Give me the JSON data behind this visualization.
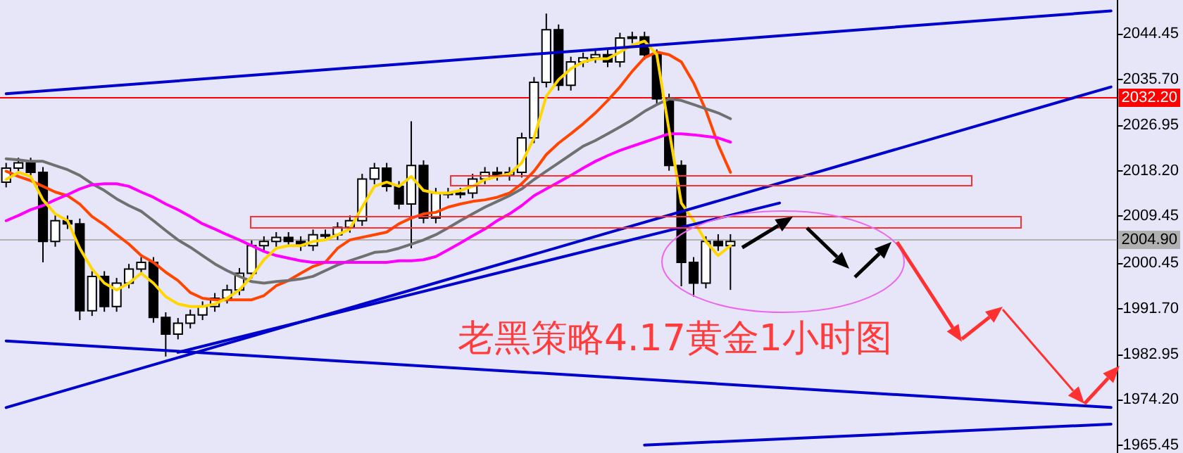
{
  "chart_data": {
    "type": "candlestick",
    "color": "#000000",
    "annotations": [
      "老黑策略4.17黄金1小时图"
    ],
    "categories": [
      null,
      null,
      null,
      null,
      null,
      null,
      null,
      null,
      null,
      null,
      null,
      null,
      null,
      null,
      null,
      null,
      null,
      null,
      null,
      null,
      null,
      null,
      null,
      null,
      null,
      null,
      null,
      null,
      null,
      null,
      null,
      null,
      null,
      null,
      null,
      null,
      null,
      null,
      null,
      null,
      null,
      null,
      null,
      null,
      null,
      null,
      null,
      null,
      null,
      null,
      null,
      null,
      null,
      null,
      null,
      null,
      null,
      null,
      null,
      null,
      null,
      null,
      null,
      null,
      null,
      null,
      null,
      null,
      null,
      null,
      null,
      null,
      null,
      null,
      null,
      null,
      null,
      null,
      null,
      null,
      null,
      null,
      null,
      null,
      null,
      null,
      null,
      null,
      null,
      null,
      null
    ],
    "ohlc": [
      [
        2016.0,
        2019.7,
        2015.0,
        2018.7
      ],
      [
        2018.7,
        2020.7,
        2017.7,
        2019.7
      ],
      [
        2019.7,
        2020.7,
        2016.9,
        2017.9
      ],
      [
        2017.9,
        2018.9,
        2000.6,
        2004.6
      ],
      [
        2004.6,
        2009.6,
        2003.6,
        2008.6
      ],
      [
        2008.6,
        2009.6,
        2007.0,
        2008.0
      ],
      [
        2008.0,
        2009.0,
        1989.5,
        1991.3
      ],
      [
        1991.3,
        1998.9,
        1990.3,
        1997.9
      ],
      [
        1997.9,
        1998.9,
        1991.1,
        1992.1
      ],
      [
        1992.1,
        1997.6,
        1991.1,
        1996.6
      ],
      [
        1996.6,
        2000.3,
        1995.6,
        1999.3
      ],
      [
        1999.3,
        2001.6,
        1998.3,
        2000.6
      ],
      [
        2000.6,
        2001.6,
        1989.0,
        1990.0
      ],
      [
        1990.0,
        1991.0,
        1982.5,
        1986.8
      ],
      [
        1986.8,
        1989.9,
        1985.8,
        1988.9
      ],
      [
        1988.9,
        1991.5,
        1987.9,
        1990.5
      ],
      [
        1990.5,
        1993.1,
        1989.5,
        1992.1
      ],
      [
        1992.1,
        1994.7,
        1991.1,
        1993.7
      ],
      [
        1993.7,
        1996.3,
        1992.7,
        1995.3
      ],
      [
        1995.3,
        1999.5,
        1994.3,
        1998.5
      ],
      [
        1998.5,
        2004.8,
        1997.5,
        2003.8
      ],
      [
        2003.8,
        2005.6,
        2002.8,
        2004.6
      ],
      [
        2004.6,
        2006.4,
        2003.6,
        2005.4
      ],
      [
        2005.4,
        2006.4,
        2003.6,
        2004.6
      ],
      [
        2004.6,
        2005.6,
        2002.8,
        2003.8
      ],
      [
        2003.8,
        2006.9,
        2002.8,
        2005.9
      ],
      [
        2005.9,
        2006.9,
        2004.9,
        2005.9
      ],
      [
        2005.9,
        2008.3,
        2004.9,
        2007.3
      ],
      [
        2007.3,
        2009.6,
        2006.3,
        2008.6
      ],
      [
        2008.6,
        2017.6,
        2007.6,
        2016.6
      ],
      [
        2016.6,
        2019.7,
        2015.6,
        2018.7
      ],
      [
        2018.7,
        2019.7,
        2014.2,
        2015.2
      ],
      [
        2015.2,
        2016.2,
        2010.8,
        2011.8
      ],
      [
        2011.8,
        2027.7,
        2003.3,
        2019.2
      ],
      [
        2019.2,
        2020.2,
        2008.1,
        2009.1
      ],
      [
        2009.1,
        2014.9,
        2008.1,
        2013.9
      ],
      [
        2013.9,
        2014.9,
        2012.9,
        2013.9
      ],
      [
        2013.9,
        2014.9,
        2012.9,
        2013.9
      ],
      [
        2013.9,
        2017.6,
        2012.9,
        2016.6
      ],
      [
        2016.6,
        2018.9,
        2015.6,
        2017.9
      ],
      [
        2017.9,
        2018.9,
        2016.3,
        2017.3
      ],
      [
        2017.3,
        2018.9,
        2016.3,
        2017.9
      ],
      [
        2017.9,
        2025.5,
        2016.9,
        2024.5
      ],
      [
        2024.5,
        2036.2,
        2023.5,
        2035.2
      ],
      [
        2035.2,
        2048.4,
        2034.2,
        2045.3
      ],
      [
        2045.3,
        2046.3,
        2033.6,
        2034.6
      ],
      [
        2034.6,
        2040.1,
        2033.6,
        2039.1
      ],
      [
        2039.1,
        2040.9,
        2038.1,
        2039.9
      ],
      [
        2039.9,
        2041.5,
        2038.9,
        2040.5
      ],
      [
        2040.5,
        2041.5,
        2038.1,
        2039.1
      ],
      [
        2039.1,
        2044.7,
        2038.1,
        2043.7
      ],
      [
        2043.7,
        2044.9,
        2042.7,
        2043.9
      ],
      [
        2043.9,
        2044.9,
        2039.5,
        2040.5
      ],
      [
        2040.5,
        2041.5,
        2031.0,
        2032.0
      ],
      [
        2032.0,
        2033.0,
        2018.2,
        2019.2
      ],
      [
        2019.2,
        2020.2,
        1996.0,
        2000.6
      ],
      [
        2000.6,
        2001.6,
        1994.0,
        1996.6
      ],
      [
        1996.6,
        2005.6,
        1995.6,
        2004.6
      ],
      [
        2004.6,
        2006.0,
        2002.8,
        2003.8
      ],
      [
        2003.8,
        2006.0,
        1995.3,
        2004.6
      ],
      null,
      null,
      null,
      null,
      null,
      null,
      null,
      null,
      null,
      null,
      null,
      null,
      null,
      null,
      null,
      null,
      null,
      null,
      null,
      null,
      null,
      null,
      null,
      null,
      null,
      null,
      null,
      null,
      null,
      null,
      null
    ],
    "series": [
      {
        "type": "line",
        "color": "#ff4500",
        "values": [
          2018.1,
          2017.1,
          2016.3,
          2015.2,
          2014.1,
          2013.4,
          2011.8,
          2009.4,
          2007.8,
          2005.9,
          2004.1,
          2001.9,
          2000.6,
          1998.7,
          1997.1,
          1994.8,
          1993.7,
          1993.4,
          1993.4,
          1993.4,
          1993.4,
          1994.2,
          1996.1,
          1997.1,
          1998.5,
          1999.8,
          2000.6,
          2003.3,
          2004.9,
          2005.4,
          2005.9,
          2006.4,
          2008.0,
          2009.1,
          2009.9,
          2010.2,
          2011.2,
          2011.8,
          2012.3,
          2012.6,
          2013.1,
          2013.9,
          2015.7,
          2018.1,
          2021.3,
          2023.5,
          2025.3,
          2027.2,
          2029.3,
          2031.7,
          2034.3,
          2037.3,
          2039.9,
          2041.0,
          2040.5,
          2039.1,
          2035.1,
          2029.8,
          2023.2,
          2017.9,
          null,
          null,
          null,
          null,
          null,
          null,
          null,
          null,
          null,
          null,
          null,
          null,
          null,
          null,
          null,
          null,
          null,
          null,
          null,
          null,
          null,
          null,
          null,
          null,
          null,
          null,
          null,
          null,
          null,
          null,
          null
        ]
      },
      {
        "type": "line",
        "color": "#707070",
        "values": [
          2020.5,
          2020.3,
          2020.0,
          2020.0,
          2019.2,
          2018.4,
          2017.3,
          2015.7,
          2014.4,
          2012.8,
          2011.5,
          2010.4,
          2008.6,
          2006.7,
          2004.9,
          2003.5,
          2001.9,
          2000.3,
          1999.0,
          1997.9,
          1996.9,
          1996.6,
          1996.9,
          1997.1,
          1997.4,
          1997.9,
          1999.0,
          2000.1,
          2000.9,
          2001.7,
          2002.5,
          2002.7,
          2003.3,
          2004.1,
          2004.9,
          2005.9,
          2007.2,
          2008.6,
          2009.9,
          2011.2,
          2012.3,
          2013.4,
          2014.7,
          2016.5,
          2018.1,
          2019.7,
          2021.3,
          2022.9,
          2024.0,
          2025.3,
          2026.6,
          2028.0,
          2029.6,
          2030.9,
          2032.0,
          2031.7,
          2030.9,
          2030.1,
          2029.3,
          2028.2,
          null,
          null,
          null,
          null,
          null,
          null,
          null,
          null,
          null,
          null,
          null,
          null,
          null,
          null,
          null,
          null,
          null,
          null,
          null,
          null,
          null,
          null,
          null,
          null,
          null,
          null,
          null,
          null,
          null,
          null,
          null
        ]
      },
      {
        "type": "line",
        "color": "#ff00ff",
        "values": [
          2008.6,
          2009.6,
          2010.7,
          2011.5,
          2012.6,
          2013.6,
          2014.7,
          2015.5,
          2015.7,
          2015.7,
          2015.2,
          2014.1,
          2013.1,
          2011.8,
          2010.7,
          2009.4,
          2008.0,
          2007.0,
          2005.9,
          2004.9,
          2003.8,
          2002.7,
          2001.9,
          2001.4,
          2000.9,
          2000.6,
          2000.6,
          2000.6,
          2000.6,
          2000.6,
          2000.6,
          2000.6,
          2000.9,
          2000.9,
          2001.1,
          2001.7,
          2003.0,
          2004.3,
          2005.7,
          2007.0,
          2008.6,
          2009.9,
          2011.5,
          2013.4,
          2014.7,
          2016.0,
          2017.3,
          2018.7,
          2020.0,
          2021.1,
          2022.1,
          2022.9,
          2023.7,
          2024.5,
          2025.3,
          2025.3,
          2025.1,
          2024.8,
          2024.5,
          2023.7,
          null,
          null,
          null,
          null,
          null,
          null,
          null,
          null,
          null,
          null,
          null,
          null,
          null,
          null,
          null,
          null,
          null,
          null,
          null,
          null,
          null,
          null,
          null,
          null,
          null,
          null,
          null,
          null,
          null,
          null,
          null
        ]
      },
      {
        "type": "line",
        "color": "#ffd700",
        "values": [
          2016.5,
          2017.9,
          2017.1,
          2012.6,
          2009.9,
          2008.6,
          2003.3,
          1999.3,
          1996.6,
          1995.3,
          1996.6,
          1998.5,
          1996.6,
          1994.0,
          1992.6,
          1992.1,
          1992.1,
          1992.6,
          1993.7,
          1995.3,
          1997.9,
          2001.1,
          2003.3,
          2003.8,
          2003.8,
          2004.6,
          2004.9,
          2005.9,
          2007.0,
          2011.2,
          2015.2,
          2016.0,
          2015.2,
          2017.1,
          2014.4,
          2013.9,
          2013.9,
          2014.4,
          2015.2,
          2016.5,
          2017.1,
          2017.6,
          2019.7,
          2024.5,
          2032.5,
          2035.7,
          2037.8,
          2039.1,
          2039.7,
          2039.7,
          2041.0,
          2042.3,
          2043.1,
          2040.5,
          2026.0,
          2012.0,
          2008.6,
          2004.6,
          2001.9,
          2003.8,
          null,
          null,
          null,
          null,
          null,
          null,
          null,
          null,
          null,
          null,
          null,
          null,
          null,
          null,
          null,
          null,
          null,
          null,
          null,
          null,
          null,
          null,
          null,
          null,
          null,
          null,
          null,
          null,
          null,
          null,
          null
        ]
      },
      {
        "type": "line",
        "color": "#0000cd",
        "values": [
          2033.0,
          null,
          null,
          null,
          null,
          null,
          null,
          null,
          null,
          null,
          null,
          null,
          null,
          null,
          null,
          null,
          null,
          null,
          null,
          null,
          null,
          null,
          null,
          null,
          null,
          null,
          null,
          null,
          null,
          null,
          null,
          null,
          null,
          null,
          null,
          null,
          null,
          null,
          null,
          null,
          null,
          null,
          null,
          null,
          null,
          null,
          null,
          null,
          null,
          null,
          null,
          null,
          null,
          null,
          null,
          null,
          null,
          null,
          null,
          null,
          null,
          null,
          null,
          null,
          null,
          null,
          null,
          null,
          null,
          null,
          null,
          null,
          null,
          null,
          null,
          null,
          null,
          null,
          null,
          null,
          null,
          null,
          null,
          null,
          null,
          null,
          null,
          null,
          null,
          null,
          2048.9
        ]
      },
      {
        "type": "line",
        "color": "#0000cd",
        "values": [
          1972.7,
          null,
          null,
          null,
          null,
          null,
          null,
          null,
          null,
          null,
          null,
          null,
          null,
          null,
          null,
          null,
          null,
          null,
          null,
          null,
          null,
          null,
          null,
          null,
          null,
          null,
          null,
          null,
          null,
          null,
          null,
          null,
          null,
          null,
          null,
          null,
          null,
          null,
          null,
          null,
          null,
          null,
          null,
          null,
          null,
          null,
          null,
          null,
          null,
          null,
          null,
          null,
          null,
          null,
          null,
          null,
          null,
          null,
          null,
          null,
          null,
          null,
          null,
          null,
          null,
          null,
          null,
          null,
          null,
          null,
          null,
          null,
          null,
          null,
          null,
          null,
          null,
          null,
          null,
          null,
          null,
          null,
          null,
          null,
          null,
          null,
          null,
          null,
          null,
          null,
          2034.3
        ]
      },
      {
        "type": "line",
        "color": "#0000cd",
        "values": [
          null,
          null,
          null,
          null,
          null,
          null,
          null,
          null,
          null,
          null,
          null,
          null,
          null,
          null,
          1983.3,
          null,
          null,
          null,
          null,
          null,
          null,
          null,
          null,
          null,
          null,
          null,
          null,
          null,
          null,
          null,
          null,
          null,
          null,
          null,
          null,
          null,
          null,
          null,
          null,
          null,
          null,
          null,
          null,
          null,
          null,
          null,
          null,
          null,
          null,
          null,
          null,
          null,
          null,
          null,
          null,
          null,
          null,
          null,
          null,
          null,
          null,
          null,
          null,
          2012.0,
          null,
          null,
          null,
          null,
          null,
          null,
          null,
          null,
          null,
          null,
          null,
          null,
          null,
          null,
          null,
          null,
          null,
          null,
          null,
          null,
          null,
          null,
          null,
          null,
          null,
          null,
          null
        ]
      },
      {
        "type": "line",
        "color": "#0000cd",
        "values": [
          1985.5,
          null,
          null,
          null,
          null,
          null,
          null,
          null,
          null,
          null,
          null,
          null,
          null,
          null,
          null,
          null,
          null,
          null,
          null,
          null,
          null,
          null,
          null,
          null,
          null,
          null,
          null,
          null,
          null,
          null,
          null,
          null,
          null,
          null,
          null,
          null,
          null,
          null,
          null,
          null,
          null,
          null,
          null,
          null,
          null,
          null,
          null,
          null,
          null,
          null,
          null,
          null,
          null,
          null,
          null,
          null,
          null,
          null,
          null,
          null,
          null,
          null,
          null,
          null,
          null,
          null,
          null,
          null,
          null,
          null,
          null,
          null,
          null,
          null,
          null,
          null,
          null,
          null,
          null,
          null,
          null,
          null,
          null,
          null,
          null,
          null,
          null,
          null,
          null,
          null,
          1972.7
        ]
      },
      {
        "type": "line",
        "color": "#0000cd",
        "values": [
          null,
          null,
          null,
          null,
          null,
          null,
          null,
          null,
          null,
          null,
          null,
          null,
          null,
          null,
          null,
          null,
          null,
          null,
          null,
          null,
          null,
          null,
          null,
          null,
          null,
          null,
          null,
          null,
          null,
          null,
          null,
          null,
          null,
          null,
          null,
          null,
          null,
          null,
          null,
          null,
          null,
          null,
          null,
          null,
          null,
          null,
          null,
          null,
          null,
          null,
          null,
          null,
          1965.5,
          null,
          null,
          null,
          null,
          null,
          null,
          null,
          null,
          null,
          null,
          null,
          null,
          null,
          null,
          null,
          null,
          null,
          null,
          null,
          null,
          null,
          null,
          null,
          null,
          null,
          null,
          null,
          null,
          null,
          null,
          null,
          null,
          null,
          null,
          null,
          null,
          null,
          1969.5
        ]
      }
    ],
    "ylim": [
      1964,
      2051
    ],
    "yticks": [
      {
        "value": 1965.45,
        "label": "1965.45"
      },
      {
        "value": 1974.2,
        "label": "1974.20"
      },
      {
        "value": 1982.95,
        "label": "1982.95"
      },
      {
        "value": 1991.7,
        "label": "1991.70"
      },
      {
        "value": 2000.45,
        "label": "2000.45"
      },
      {
        "value": 2009.45,
        "label": "2009.45"
      },
      {
        "value": 2018.2,
        "label": "2018.20"
      },
      {
        "value": 2026.95,
        "label": "2026.95"
      },
      {
        "value": 2035.7,
        "label": "2035.70"
      },
      {
        "value": 2044.45,
        "label": "2044.45"
      }
    ],
    "ref_lines": [
      {
        "axis": "y",
        "value": 2032.2,
        "label": "2032.20",
        "color": "#ff0000"
      },
      {
        "axis": "y",
        "value": 2004.9,
        "label": "2004.90",
        "color": "#b0b0b0"
      }
    ],
    "tick_labels": "y",
    "grid": false,
    "line_style": "solid"
  }
}
